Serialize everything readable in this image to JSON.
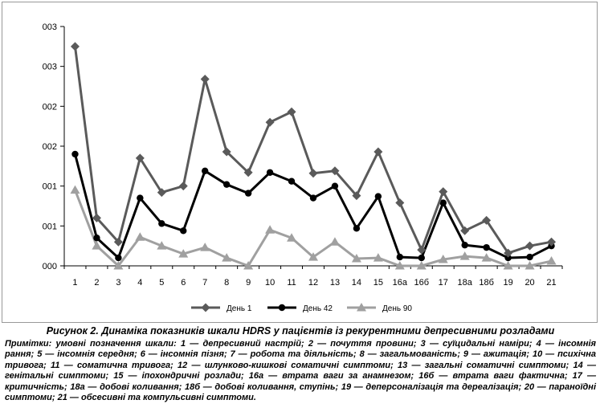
{
  "chart_data": {
    "type": "line",
    "title": "",
    "xlabel": "",
    "ylabel": "",
    "categories": [
      "1",
      "2",
      "3",
      "4",
      "5",
      "6",
      "7",
      "8",
      "9",
      "10",
      "11",
      "12",
      "13",
      "14",
      "15",
      "16а",
      "16б",
      "17",
      "18а",
      "18б",
      "19",
      "20",
      "21"
    ],
    "y_tick_labels": [
      "000",
      "001",
      "001",
      "002",
      "002",
      "003",
      "003"
    ],
    "ylim": [
      0,
      3
    ],
    "grid": false,
    "legend_position": "bottom",
    "series": [
      {
        "name": "День 1",
        "color": "#5a5a5a",
        "marker": "diamond",
        "values": [
          2.75,
          0.6,
          0.3,
          1.35,
          0.92,
          1.0,
          2.34,
          1.43,
          1.17,
          1.8,
          1.93,
          1.16,
          1.19,
          0.88,
          1.43,
          0.79,
          0.2,
          0.93,
          0.44,
          0.57,
          0.16,
          0.25,
          0.3
        ]
      },
      {
        "name": "День 42",
        "color": "#000000",
        "marker": "circle",
        "values": [
          1.4,
          0.35,
          0.1,
          0.85,
          0.53,
          0.44,
          1.19,
          1.02,
          0.91,
          1.17,
          1.06,
          0.85,
          1.0,
          0.47,
          0.87,
          0.11,
          0.1,
          0.79,
          0.26,
          0.23,
          0.1,
          0.11,
          0.25
        ]
      },
      {
        "name": "День 90",
        "color": "#a0a0a0",
        "marker": "triangle",
        "values": [
          0.95,
          0.25,
          0.0,
          0.36,
          0.25,
          0.15,
          0.23,
          0.1,
          0.0,
          0.45,
          0.35,
          0.11,
          0.3,
          0.09,
          0.1,
          0.0,
          0.0,
          0.08,
          0.12,
          0.1,
          0.0,
          0.0,
          0.06
        ]
      }
    ]
  },
  "caption": {
    "title": "Рисунок 2. Динаміка показників шкали HDRS у пацієнтів із рекурентними депресивними розладами",
    "notes": "Примітки: умовні позначення шкали: 1 — депресивний настрій; 2 — почуття провини; 3 — суїцидальні наміри; 4 — інсомнія рання; 5 — інсомнія середня; 6 — інсомнія пізня; 7 — робота та діяльність; 8 — загальмованість; 9 — ажитація; 10 — психічна тривога; 11 — соматична тривога; 12 — шлунково-кишкові соматичні симптоми; 13 — загальні соматичні симптоми; 14 — генітальні симптоми; 15 — іпохондричні розлади; 16а — втрата ваги за анамнезом; 16б — втрата ваги фактична; 17 — критичність; 18а — добові коливання; 18б — добові коливання, ступінь; 19 — деперсоналізація та дереалізація; 20 — параноїдні симптоми; 21 — обсесивні та компульсивні симптоми."
  }
}
